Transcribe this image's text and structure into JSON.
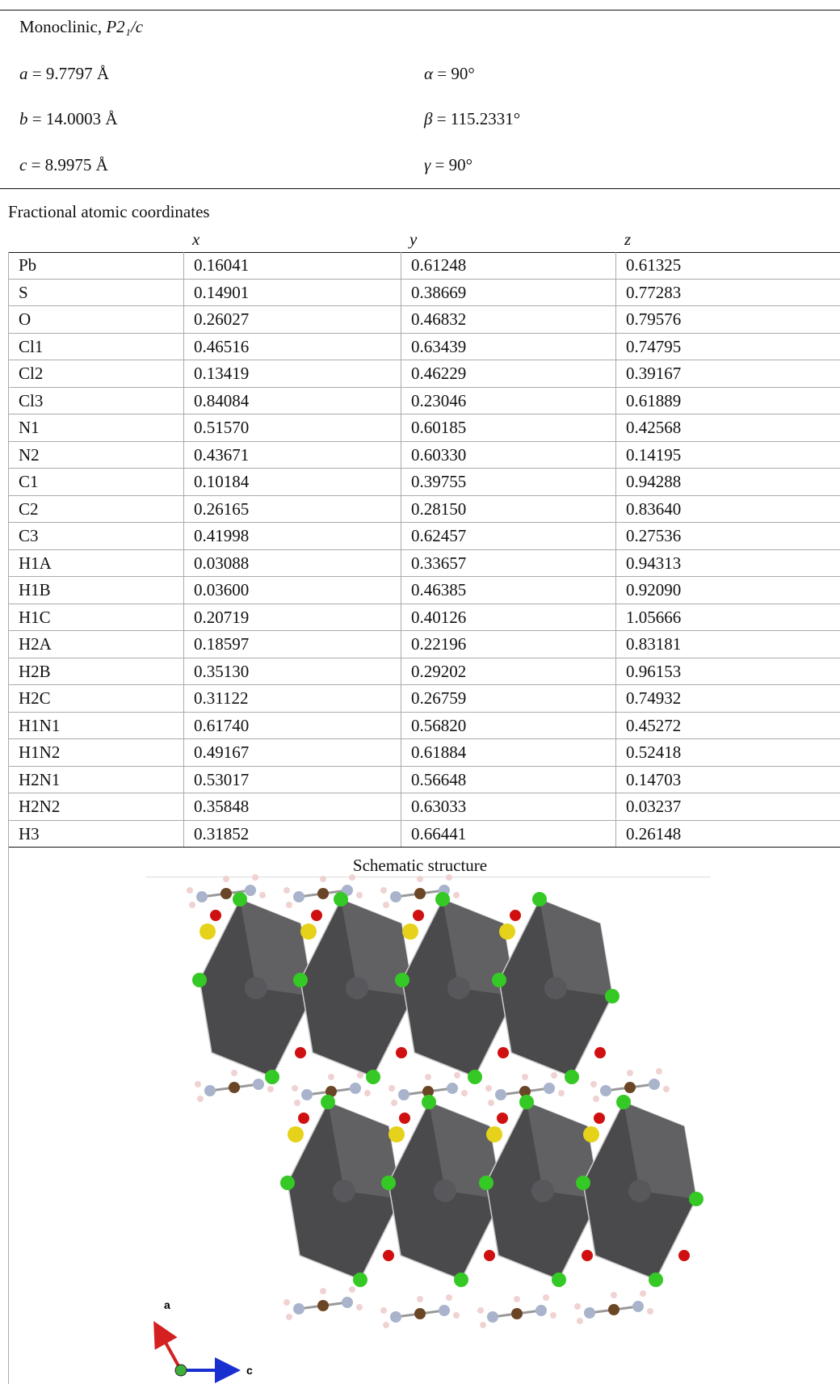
{
  "cell": {
    "crystal_system": "Monoclinic,",
    "space_group": "P2₁/c",
    "params": [
      {
        "symbol": "a",
        "value": "= 9.7797 Å"
      },
      {
        "symbol": "α",
        "value": "= 90°"
      },
      {
        "symbol": "b",
        "value": "= 14.0003 Å"
      },
      {
        "symbol": "β",
        "value": "= 115.2331°"
      },
      {
        "symbol": "c",
        "value": "= 8.9975 Å"
      },
      {
        "symbol": "γ",
        "value": "= 90°"
      }
    ]
  },
  "table": {
    "title": "Fractional atomic coordinates",
    "header": [
      "x",
      "y",
      "z"
    ],
    "rows": [
      [
        "Pb",
        "0.16041",
        "0.61248",
        "0.61325"
      ],
      [
        "S",
        "0.14901",
        "0.38669",
        "0.77283"
      ],
      [
        "O",
        "0.26027",
        "0.46832",
        "0.79576"
      ],
      [
        "Cl1",
        "0.46516",
        "0.63439",
        "0.74795"
      ],
      [
        "Cl2",
        "0.13419",
        "0.46229",
        "0.39167"
      ],
      [
        "Cl3",
        "0.84084",
        "0.23046",
        "0.61889"
      ],
      [
        "N1",
        "0.51570",
        "0.60185",
        "0.42568"
      ],
      [
        "N2",
        "0.43671",
        "0.60330",
        "0.14195"
      ],
      [
        "C1",
        "0.10184",
        "0.39755",
        "0.94288"
      ],
      [
        "C2",
        "0.26165",
        "0.28150",
        "0.83640"
      ],
      [
        "C3",
        "0.41998",
        "0.62457",
        "0.27536"
      ],
      [
        "H1A",
        "0.03088",
        "0.33657",
        "0.94313"
      ],
      [
        "H1B",
        "0.03600",
        "0.46385",
        "0.92090"
      ],
      [
        "H1C",
        "0.20719",
        "0.40126",
        "1.05666"
      ],
      [
        "H2A",
        "0.18597",
        "0.22196",
        "0.83181"
      ],
      [
        "H2B",
        "0.35130",
        "0.29202",
        "0.96153"
      ],
      [
        "H2C",
        "0.31122",
        "0.26759",
        "0.74932"
      ],
      [
        "H1N1",
        "0.61740",
        "0.56820",
        "0.45272"
      ],
      [
        "H1N2",
        "0.49167",
        "0.61884",
        "0.52418"
      ],
      [
        "H2N1",
        "0.53017",
        "0.56648",
        "0.14703"
      ],
      [
        "H2N2",
        "0.35848",
        "0.63033",
        "0.03237"
      ],
      [
        "H3",
        "0.31852",
        "0.66441",
        "0.26148"
      ]
    ]
  },
  "figure": {
    "caption": "Schematic structure",
    "axes": [
      "a",
      "c"
    ]
  }
}
